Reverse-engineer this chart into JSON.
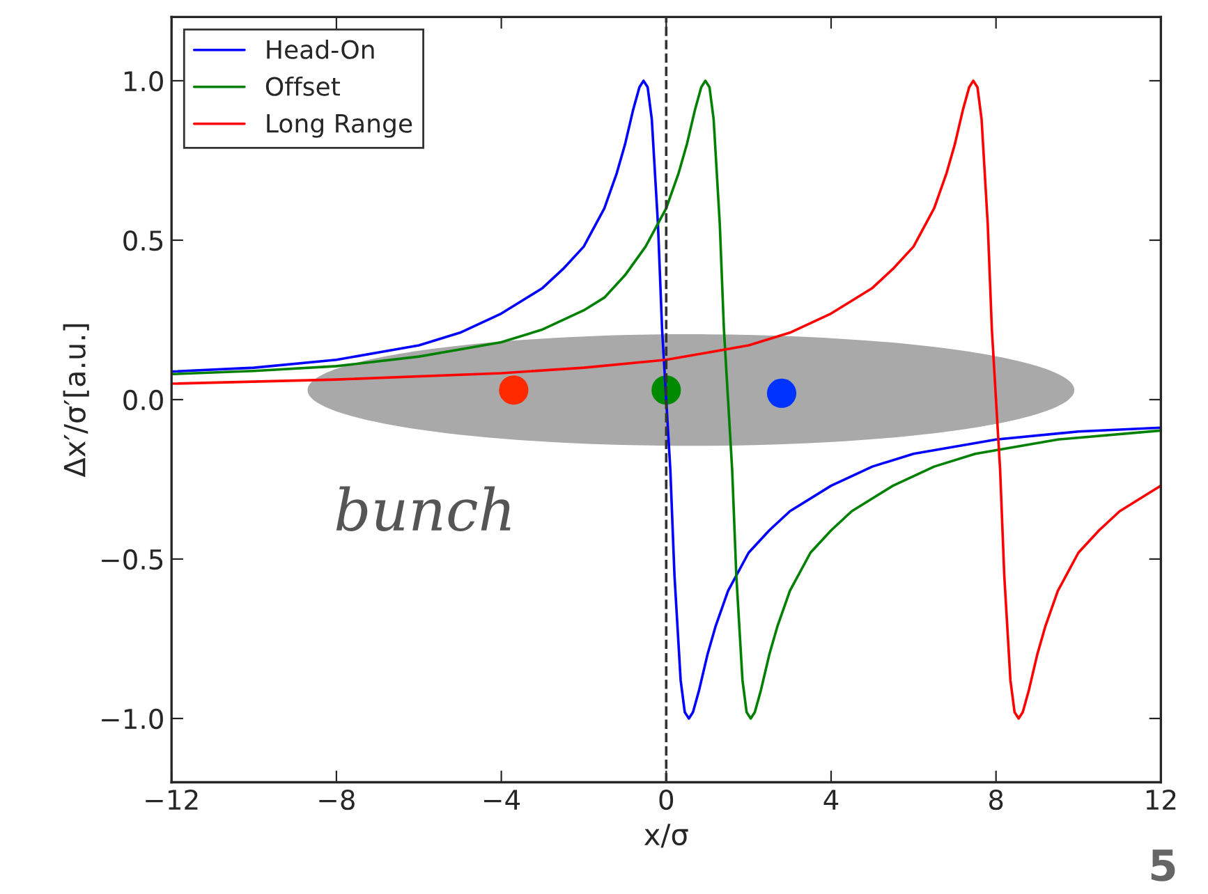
{
  "chart_data": {
    "type": "line",
    "xlabel": "x/σ",
    "ylabel": "Δx′/σ′[a.u.]",
    "xlim": [
      -12,
      12
    ],
    "ylim": [
      -1.2,
      1.2
    ],
    "xticks": [
      {
        "value": -12,
        "label": "−12"
      },
      {
        "value": -8,
        "label": "−8"
      },
      {
        "value": -4,
        "label": "−4"
      },
      {
        "value": 0,
        "label": "0"
      },
      {
        "value": 4,
        "label": "4"
      },
      {
        "value": 8,
        "label": "8"
      },
      {
        "value": 12,
        "label": "12"
      }
    ],
    "yticks": [
      {
        "value": -1.0,
        "label": "−1.0"
      },
      {
        "value": -0.5,
        "label": "−0.5"
      },
      {
        "value": 0.0,
        "label": "0.0"
      },
      {
        "value": 0.5,
        "label": "0.5"
      },
      {
        "value": 1.0,
        "label": "1.0"
      }
    ],
    "grid": false,
    "legend": "top left",
    "marker": "none",
    "line_style": "solid",
    "series": [
      {
        "name": "Head-On",
        "color": "#0000ff",
        "x": [
          -12,
          -10,
          -8,
          -6,
          -5,
          -4,
          -3,
          -2.5,
          -2,
          -1.5,
          -1.2,
          -1,
          -0.8,
          -0.65,
          -0.55,
          -0.45,
          -0.35,
          -0.2,
          -0.1,
          0,
          0.1,
          0.2,
          0.35,
          0.45,
          0.55,
          0.65,
          0.8,
          1,
          1.2,
          1.5,
          2,
          2.5,
          3,
          4,
          5,
          6,
          8,
          10,
          12
        ],
        "values": [
          0.088,
          0.1,
          0.125,
          0.17,
          0.21,
          0.27,
          0.35,
          0.41,
          0.48,
          0.6,
          0.71,
          0.8,
          0.91,
          0.98,
          1.0,
          0.98,
          0.88,
          0.55,
          0.22,
          0,
          -0.22,
          -0.55,
          -0.88,
          -0.98,
          -1.0,
          -0.98,
          -0.91,
          -0.8,
          -0.71,
          -0.6,
          -0.48,
          -0.41,
          -0.35,
          -0.27,
          -0.21,
          -0.17,
          -0.125,
          -0.1,
          -0.088
        ]
      },
      {
        "name": "Offset",
        "color": "#008000",
        "x": [
          -12,
          -10,
          -8,
          -6,
          -4,
          -3,
          -2,
          -1.5,
          -1,
          -0.5,
          0,
          0.3,
          0.5,
          0.7,
          0.85,
          0.95,
          1.05,
          1.15,
          1.3,
          1.4,
          1.5,
          1.6,
          1.7,
          1.85,
          1.95,
          2.05,
          2.15,
          2.3,
          2.5,
          2.7,
          3,
          3.5,
          4,
          4.5,
          5.5,
          6.5,
          7.5,
          9.5,
          12
        ],
        "values": [
          0.08,
          0.09,
          0.105,
          0.135,
          0.18,
          0.22,
          0.28,
          0.32,
          0.39,
          0.48,
          0.6,
          0.71,
          0.8,
          0.91,
          0.98,
          1.0,
          0.98,
          0.88,
          0.55,
          0.22,
          0,
          -0.22,
          -0.55,
          -0.88,
          -0.98,
          -1.0,
          -0.98,
          -0.91,
          -0.8,
          -0.71,
          -0.6,
          -0.48,
          -0.41,
          -0.35,
          -0.27,
          -0.21,
          -0.17,
          -0.125,
          -0.097
        ]
      },
      {
        "name": "Long Range",
        "color": "#ff0000",
        "x": [
          -12,
          -8,
          -4,
          -2,
          0,
          2,
          3,
          4,
          5,
          5.5,
          6,
          6.5,
          6.8,
          7,
          7.2,
          7.35,
          7.45,
          7.55,
          7.65,
          7.8,
          7.9,
          8,
          8.1,
          8.2,
          8.35,
          8.45,
          8.55,
          8.65,
          8.8,
          9,
          9.2,
          9.5,
          10,
          10.5,
          11,
          12
        ],
        "values": [
          0.05,
          0.063,
          0.083,
          0.1,
          0.125,
          0.17,
          0.21,
          0.27,
          0.35,
          0.41,
          0.48,
          0.6,
          0.71,
          0.8,
          0.91,
          0.98,
          1.0,
          0.98,
          0.88,
          0.55,
          0.22,
          0,
          -0.22,
          -0.55,
          -0.88,
          -0.98,
          -1.0,
          -0.98,
          -0.91,
          -0.8,
          -0.71,
          -0.6,
          -0.48,
          -0.41,
          -0.35,
          -0.27
        ]
      },
      {
        "type": "scatter",
        "x": [
          -3.7,
          0,
          2.8
        ],
        "values": [
          0.03,
          0.03,
          0.02
        ],
        "colors": [
          "#ff2a00",
          "#008a00",
          "#0033ff"
        ],
        "marker": "circle"
      }
    ],
    "ref_lines": [
      {
        "axis": "x",
        "value": 0,
        "color": "#333333",
        "line_style": "dashed"
      }
    ],
    "annotations": [
      "bunch",
      "5"
    ]
  }
}
